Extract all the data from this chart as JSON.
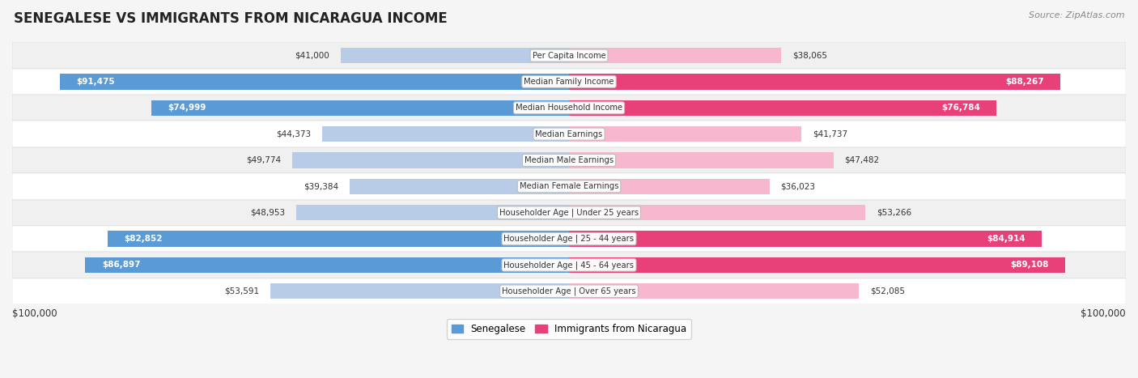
{
  "title": "SENEGALESE VS IMMIGRANTS FROM NICARAGUA INCOME",
  "source": "Source: ZipAtlas.com",
  "categories": [
    "Per Capita Income",
    "Median Family Income",
    "Median Household Income",
    "Median Earnings",
    "Median Male Earnings",
    "Median Female Earnings",
    "Householder Age | Under 25 years",
    "Householder Age | 25 - 44 years",
    "Householder Age | 45 - 64 years",
    "Householder Age | Over 65 years"
  ],
  "senegalese_values": [
    41000,
    91475,
    74999,
    44373,
    49774,
    39384,
    48953,
    82852,
    86897,
    53591
  ],
  "nicaragua_values": [
    38065,
    88267,
    76784,
    41737,
    47482,
    36023,
    53266,
    84914,
    89108,
    52085
  ],
  "senegalese_labels": [
    "$41,000",
    "$91,475",
    "$74,999",
    "$44,373",
    "$49,774",
    "$39,384",
    "$48,953",
    "$82,852",
    "$86,897",
    "$53,591"
  ],
  "nicaragua_labels": [
    "$38,065",
    "$88,267",
    "$76,784",
    "$41,737",
    "$47,482",
    "$36,023",
    "$53,266",
    "$84,914",
    "$89,108",
    "$52,085"
  ],
  "max_value": 100000,
  "senegalese_color_light": "#b8cce8",
  "senegalese_color_dark": "#5b9bd5",
  "nicaragua_color_light": "#f7b8cf",
  "nicaragua_color_dark": "#e8417a",
  "background_color": "#f5f5f5",
  "row_colors": [
    "#f0f0f0",
    "#ffffff"
  ],
  "label_inside_threshold": 58000,
  "x_axis_label_left": "$100,000",
  "x_axis_label_right": "$100,000",
  "legend_label_senegalese": "Senegalese",
  "legend_label_nicaragua": "Immigrants from Nicaragua"
}
